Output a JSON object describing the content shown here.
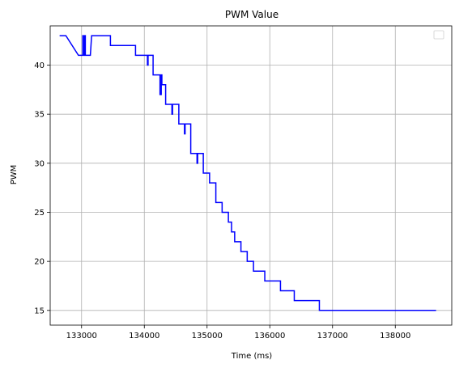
{
  "chart_data": {
    "type": "line",
    "title": "PWM Value",
    "xlabel": "Time (ms)",
    "ylabel": "PWM",
    "xlim": [
      132500,
      138900
    ],
    "ylim": [
      13.5,
      44
    ],
    "xticks": [
      133000,
      134000,
      135000,
      136000,
      137000,
      138000
    ],
    "yticks": [
      15,
      20,
      25,
      30,
      35,
      40
    ],
    "grid": true,
    "legend": {
      "placement": "top-right",
      "entries": []
    },
    "series": [
      {
        "color": "#0000ff",
        "x": [
          132650,
          132750,
          132950,
          133020,
          133020,
          133030,
          133030,
          133050,
          133050,
          133060,
          133060,
          133140,
          133160,
          133460,
          133460,
          133860,
          133860,
          134050,
          134050,
          134060,
          134060,
          134140,
          134140,
          134250,
          134250,
          134270,
          134270,
          134280,
          134280,
          134340,
          134340,
          134440,
          134440,
          134450,
          134450,
          134550,
          134550,
          134640,
          134640,
          134650,
          134650,
          134740,
          134740,
          134840,
          134840,
          134850,
          134850,
          134940,
          134940,
          135040,
          135040,
          135140,
          135140,
          135190,
          135190,
          135240,
          135240,
          135340,
          135340,
          135390,
          135390,
          135440,
          135440,
          135540,
          135540,
          135640,
          135640,
          135740,
          135740,
          135840,
          135840,
          135920,
          135920,
          135990,
          135990,
          136170,
          136170,
          136390,
          136390,
          136790,
          136790,
          138650
        ],
        "y": [
          43,
          43,
          41,
          41,
          43,
          43,
          41,
          41,
          43,
          43,
          41,
          41,
          43,
          43,
          42,
          42,
          41,
          41,
          40,
          40,
          41,
          41,
          39,
          39,
          37,
          37,
          39,
          39,
          38,
          38,
          36,
          36,
          35,
          35,
          36,
          36,
          34,
          34,
          33,
          33,
          34,
          34,
          31,
          31,
          30,
          30,
          31,
          31,
          29,
          29,
          28,
          28,
          26,
          26,
          26,
          26,
          25,
          25,
          24,
          24,
          23,
          23,
          22,
          22,
          21,
          21,
          20,
          20,
          19,
          19,
          19,
          19,
          18,
          18,
          18,
          18,
          17,
          17,
          16,
          16,
          15,
          15
        ]
      }
    ]
  }
}
